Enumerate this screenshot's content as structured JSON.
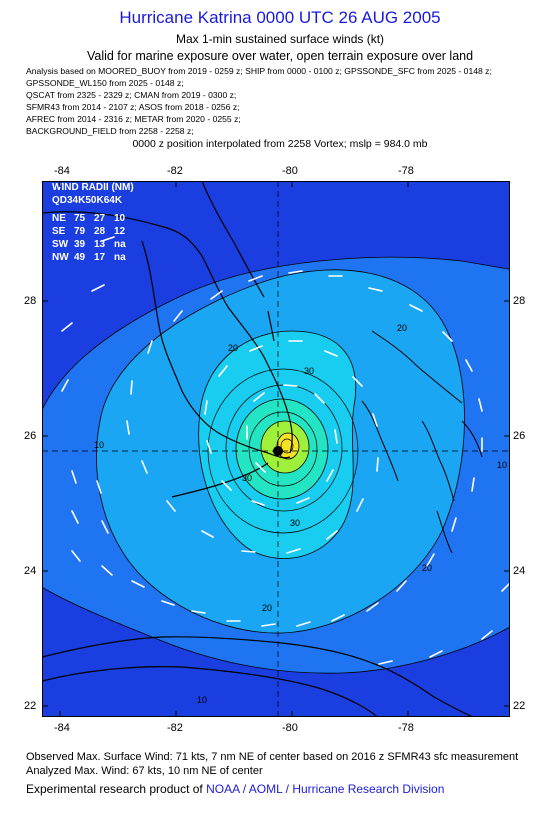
{
  "header": {
    "title": "Hurricane Katrina 0000 UTC 26 AUG 2005",
    "subtitle": "Max 1-min sustained surface winds (kt)",
    "validity": "Valid for marine exposure over water, open terrain exposure over land"
  },
  "sources": [
    "Analysis based on  MOORED_BUOY from 2019 - 0259 z;  SHIP from 0000 - 0100 z;  GPSSONDE_SFC from 2025 - 0148 z;",
    "GPSSONDE_WL150 from 2025 - 0148 z;",
    "QSCAT from 2325 - 2329 z;  CMAN from 2019 - 0300 z;",
    "SFMR43 from 2014 - 2107 z;  ASOS from 2018 - 0256 z;",
    "AFREC from 2014 - 2316 z;  METAR from 2020 - 0255 z;",
    "BACKGROUND_FIELD from 2258 - 2258 z;"
  ],
  "position_note": "0000 z position interpolated from 2258 Vortex; mslp = 984.0 mb",
  "map": {
    "lon_ticks": [
      "-84",
      "-82",
      "-80",
      "-78"
    ],
    "lat_ticks": [
      "28",
      "26",
      "24",
      "22"
    ],
    "contour_labels": [
      "10",
      "10",
      "10",
      "20",
      "20",
      "20",
      "20",
      "30",
      "30",
      "30"
    ],
    "colors": {
      "level_0": "#1a3ee0",
      "level_10": "#1f74f2",
      "level_20": "#1aa6f3",
      "level_30": "#19cdf0",
      "level_40": "#23e5c3",
      "level_50": "#9ef03a",
      "level_60": "#f6e224",
      "land_outline": "#000000",
      "wind_barb": "#ffffff",
      "center": "#000000"
    },
    "wind_radii": {
      "title": "WIND RADII (NM)",
      "header": "QD34K50K64K",
      "rows": [
        {
          "quadrant": "NE",
          "r34": "75",
          "r50": "27",
          "r64": "10"
        },
        {
          "quadrant": "SE",
          "r34": "79",
          "r50": "28",
          "r64": "12"
        },
        {
          "quadrant": "SW",
          "r34": "39",
          "r50": "13",
          "r64": "na"
        },
        {
          "quadrant": "NW",
          "r34": "49",
          "r50": "17",
          "r64": "na"
        }
      ]
    }
  },
  "footer": {
    "observed": "Observed Max. Surface Wind: 71 kts, 7 nm NE of center based on 2016 z SFMR43 sfc measurement",
    "analyzed": "Analyzed Max. Wind: 67 kts, 10 nm NE of center",
    "credit_prefix": "Experimental research product of ",
    "credit_org": "NOAA / AOML / Hurricane Research Division"
  }
}
